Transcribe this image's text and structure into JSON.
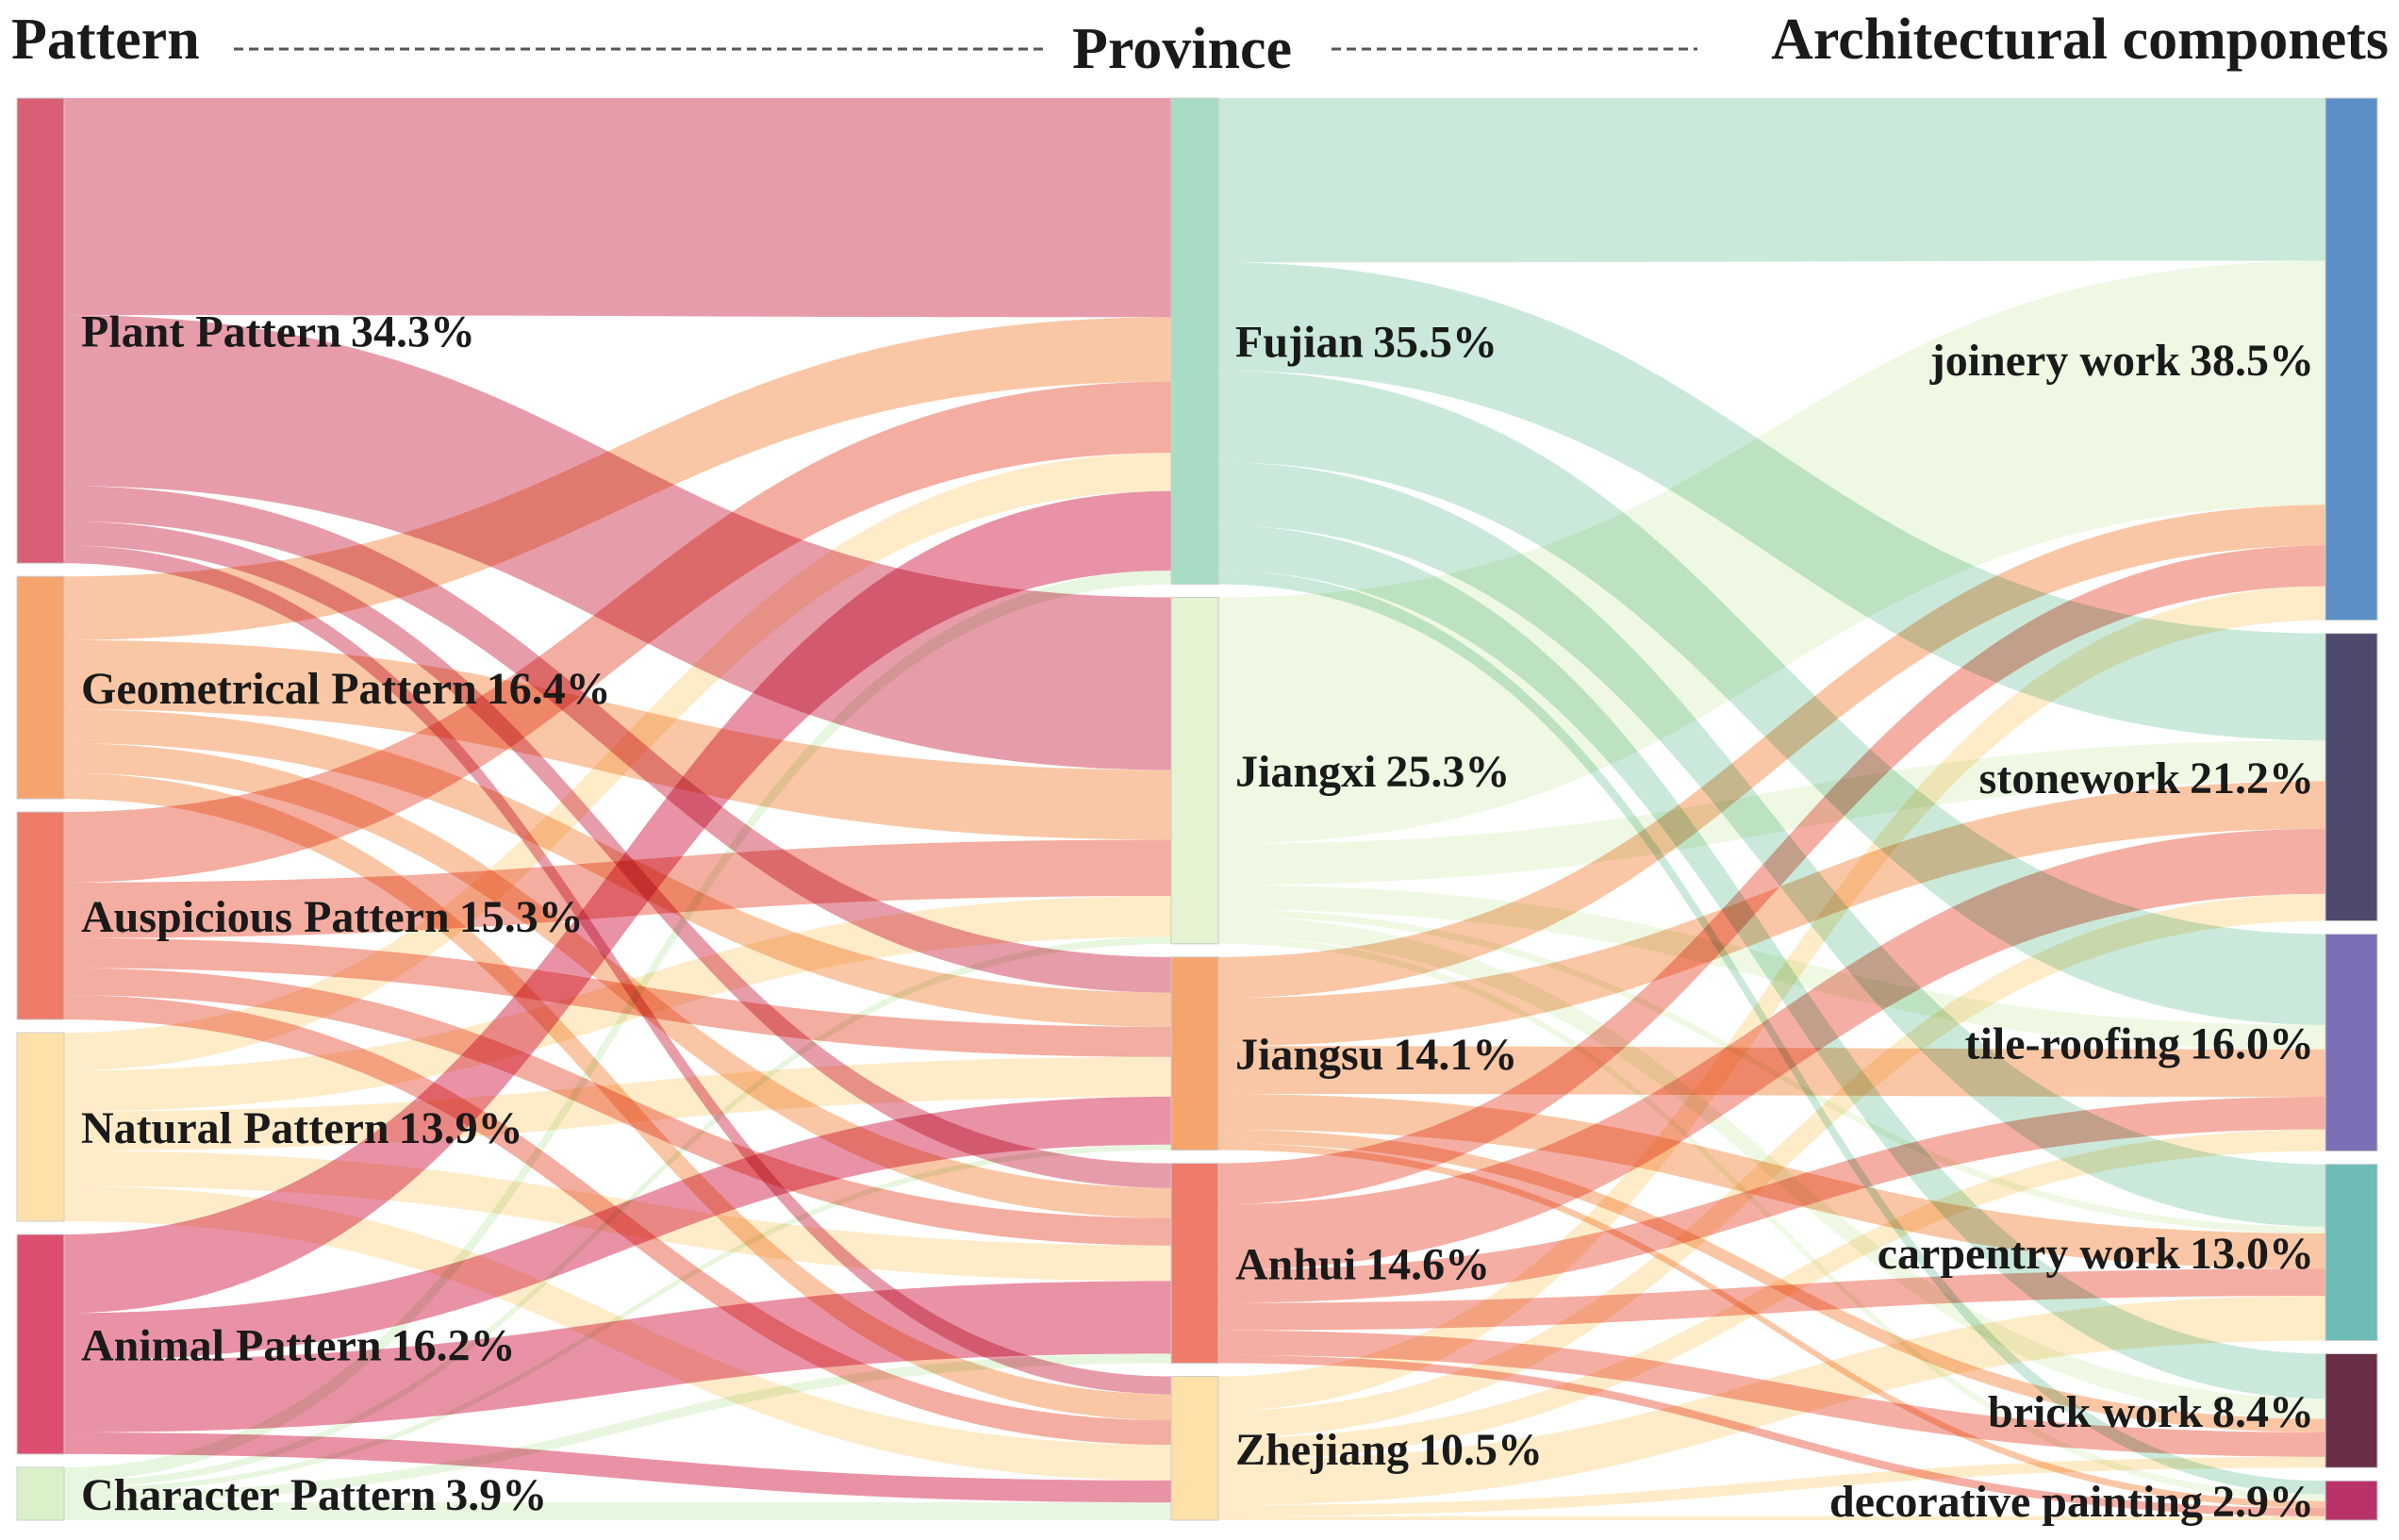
{
  "chart_data": {
    "type": "sankey",
    "title": "",
    "headers": {
      "left": "Pattern",
      "middle": "Province",
      "right": "Architectural componets"
    },
    "patterns": [
      {
        "name": "Plant Pattern",
        "pct": "34.3%",
        "value": 34.3,
        "color": "#d95f76"
      },
      {
        "name": "Geometrical Pattern",
        "pct": "16.4%",
        "value": 16.4,
        "color": "#f6a46e"
      },
      {
        "name": "Auspicious Pattern",
        "pct": "15.3%",
        "value": 15.3,
        "color": "#ed7b68"
      },
      {
        "name": "Natural Pattern",
        "pct": "13.9%",
        "value": 13.9,
        "color": "#fde1a8"
      },
      {
        "name": "Animal Pattern",
        "pct": "16.2%",
        "value": 16.2,
        "color": "#dc4f6f"
      },
      {
        "name": "Character Pattern",
        "pct": "3.9%",
        "value": 3.9,
        "color": "#d9f0c9"
      }
    ],
    "provinces": [
      {
        "name": "Fujian",
        "pct": "35.5%",
        "value": 35.5,
        "color": "#a9dcc4"
      },
      {
        "name": "Jiangxi",
        "pct": "25.3%",
        "value": 25.3,
        "color": "#e4f3d2"
      },
      {
        "name": "Jiangsu",
        "pct": "14.1%",
        "value": 14.1,
        "color": "#f6a46e"
      },
      {
        "name": "Anhui",
        "pct": "14.6%",
        "value": 14.6,
        "color": "#ef7c6b"
      },
      {
        "name": "Zhejiang",
        "pct": "10.5%",
        "value": 10.5,
        "color": "#fde1a8"
      }
    ],
    "components": [
      {
        "name": "joinery work",
        "pct": "38.5%",
        "value": 38.5,
        "color": "#5b8fc6"
      },
      {
        "name": "stonework",
        "pct": "21.2%",
        "value": 21.2,
        "color": "#4d4a6e"
      },
      {
        "name": "tile-roofing",
        "pct": "16.0%",
        "value": 16.0,
        "color": "#7b70b6"
      },
      {
        "name": "carpentry work",
        "pct": "13.0%",
        "value": 13.0,
        "color": "#6dbcb5"
      },
      {
        "name": "brick work",
        "pct": "8.4%",
        "value": 8.4,
        "color": "#6a2e47"
      },
      {
        "name": "decorative painting",
        "pct": "2.9%",
        "value": 2.9,
        "color": "#b9336a"
      }
    ],
    "pattern_to_province": [
      [
        16.0,
        12.6,
        2.6,
        1.8,
        1.3
      ],
      [
        4.7,
        5.1,
        2.5,
        2.2,
        1.9
      ],
      [
        5.2,
        4.1,
        2.2,
        2.0,
        1.8
      ],
      [
        2.8,
        3.0,
        2.9,
        2.6,
        2.6
      ],
      [
        5.8,
        0.0,
        3.5,
        5.3,
        1.6
      ],
      [
        1.0,
        0.5,
        0.4,
        0.7,
        1.3
      ]
    ],
    "province_to_component": [
      [
        12.0,
        7.9,
        6.7,
        4.6,
        3.3,
        1.0
      ],
      [
        18.0,
        3.0,
        1.8,
        0.5,
        1.5,
        0.5
      ],
      [
        3.0,
        3.5,
        3.5,
        2.6,
        1.0,
        0.5
      ],
      [
        3.0,
        4.8,
        2.4,
        2.0,
        1.8,
        0.6
      ],
      [
        2.5,
        2.0,
        1.6,
        3.3,
        0.8,
        0.3
      ]
    ]
  }
}
